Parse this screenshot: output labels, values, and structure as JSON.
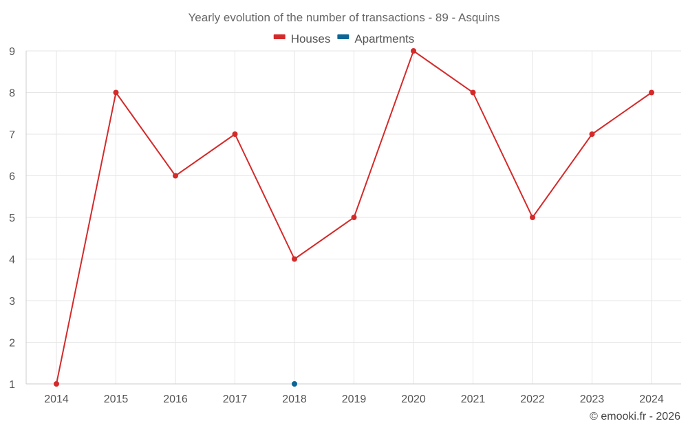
{
  "chart_data": {
    "type": "line",
    "title": "Yearly evolution of the number of transactions - 89 - Asquins",
    "categories": [
      "2014",
      "2015",
      "2016",
      "2017",
      "2018",
      "2019",
      "2020",
      "2021",
      "2022",
      "2023",
      "2024"
    ],
    "series": [
      {
        "name": "Houses",
        "color": "#d42a2a",
        "values": [
          1,
          8,
          6,
          7,
          4,
          5,
          9,
          8,
          5,
          7,
          8
        ]
      },
      {
        "name": "Apartments",
        "color": "#0b6596",
        "values": [
          null,
          null,
          null,
          null,
          1,
          null,
          null,
          null,
          null,
          null,
          null
        ]
      }
    ],
    "ylim": [
      1,
      9
    ],
    "yticks": [
      1,
      2,
      3,
      4,
      5,
      6,
      7,
      8,
      9
    ],
    "xlabel": "",
    "ylabel": "",
    "grid": true,
    "legend_position": "top-center"
  },
  "credit": "© emooki.fr - 2026"
}
